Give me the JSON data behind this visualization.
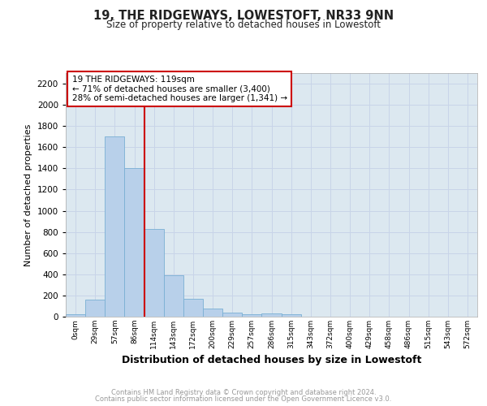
{
  "title1": "19, THE RIDGEWAYS, LOWESTOFT, NR33 9NN",
  "title2": "Size of property relative to detached houses in Lowestoft",
  "xlabel": "Distribution of detached houses by size in Lowestoft",
  "ylabel": "Number of detached properties",
  "bar_labels": [
    "0sqm",
    "29sqm",
    "57sqm",
    "86sqm",
    "114sqm",
    "143sqm",
    "172sqm",
    "200sqm",
    "229sqm",
    "257sqm",
    "286sqm",
    "315sqm",
    "343sqm",
    "372sqm",
    "400sqm",
    "429sqm",
    "458sqm",
    "486sqm",
    "515sqm",
    "543sqm",
    "572sqm"
  ],
  "bar_values": [
    20,
    160,
    1700,
    1400,
    830,
    390,
    170,
    75,
    35,
    25,
    30,
    20,
    0,
    0,
    0,
    0,
    0,
    0,
    0,
    0,
    0
  ],
  "bar_color": "#b8d0ea",
  "bar_edgecolor": "#7aafd4",
  "red_line_color": "#cc0000",
  "ylim": [
    0,
    2300
  ],
  "yticks": [
    0,
    200,
    400,
    600,
    800,
    1000,
    1200,
    1400,
    1600,
    1800,
    2000,
    2200
  ],
  "annotation_text": "19 THE RIDGEWAYS: 119sqm\n← 71% of detached houses are smaller (3,400)\n28% of semi-detached houses are larger (1,341) →",
  "annotation_box_color": "#ffffff",
  "annotation_border_color": "#cc0000",
  "grid_color": "#c8d4e8",
  "bg_color": "#dce8f0",
  "footer_line1": "Contains HM Land Registry data © Crown copyright and database right 2024.",
  "footer_line2": "Contains public sector information licensed under the Open Government Licence v3.0.",
  "footer_color": "#999999",
  "red_line_bar_index": 4
}
